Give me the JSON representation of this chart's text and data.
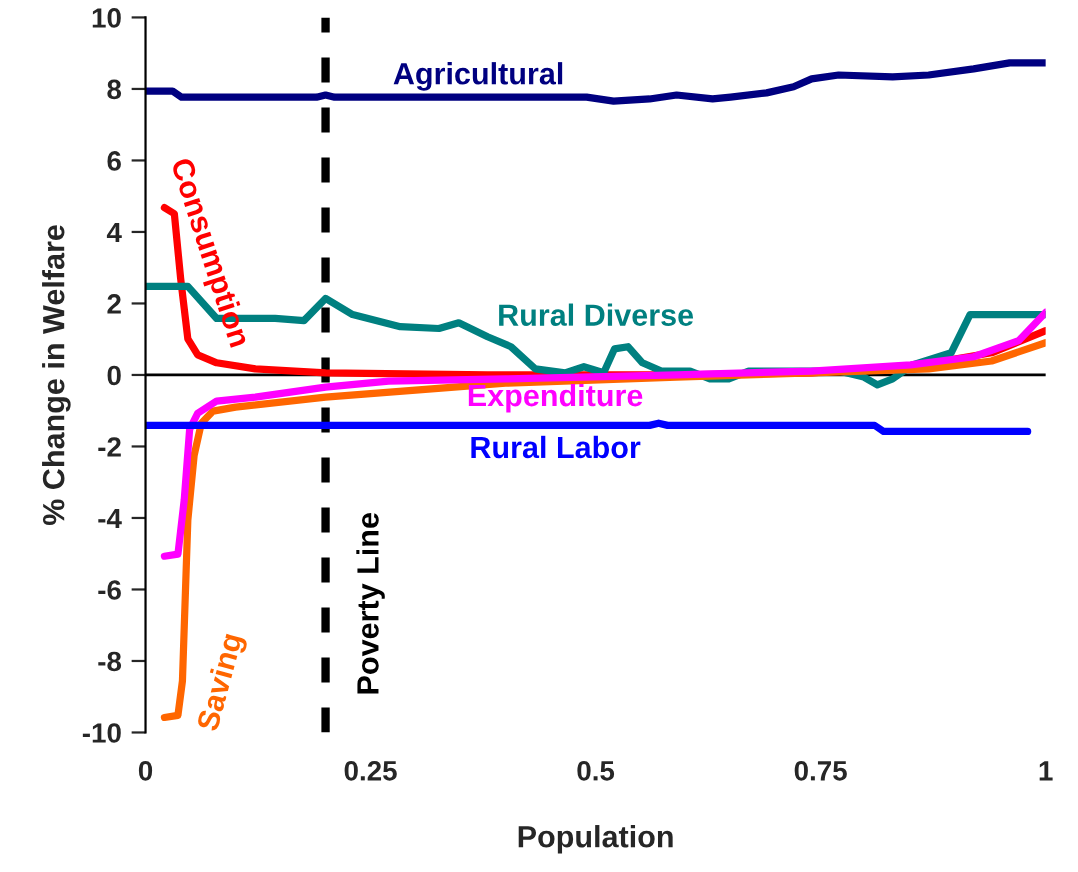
{
  "chart_data": {
    "type": "line",
    "xlabel": "Population",
    "ylabel": "% Change in Welfare",
    "xlim": [
      0,
      1
    ],
    "xticks": [
      0,
      0.25,
      0.5,
      0.75,
      1
    ],
    "ylim": [
      -10,
      10
    ],
    "yticks": [
      -10,
      -8,
      -6,
      -4,
      -2,
      0,
      2,
      4,
      6,
      8,
      10
    ],
    "grid": false,
    "legend": false,
    "line_style": "solid",
    "marker": "none",
    "ref_lines": [
      {
        "axis": "x",
        "value": 0.2,
        "label": "Poverty Line",
        "color": "#000000",
        "line_style": "dashed"
      },
      {
        "axis": "y",
        "value": 0,
        "label": null,
        "color": "#000000",
        "line_style": "solid"
      }
    ],
    "series": [
      {
        "name": "Agricultural",
        "color": "#000080",
        "x": [
          0,
          0.03,
          0.04,
          0.19,
          0.2,
          0.21,
          0.49,
          0.52,
          0.56,
          0.59,
          0.63,
          0.65,
          0.69,
          0.72,
          0.74,
          0.77,
          0.83,
          0.87,
          0.92,
          0.96,
          1.0
        ],
        "values": [
          7.94,
          7.94,
          7.77,
          7.77,
          7.83,
          7.77,
          7.77,
          7.66,
          7.72,
          7.83,
          7.72,
          7.77,
          7.89,
          8.06,
          8.28,
          8.39,
          8.34,
          8.39,
          8.56,
          8.73,
          8.73
        ]
      },
      {
        "name": "Consumption",
        "color": "#ff0000",
        "x": [
          0.021,
          0.032,
          0.039,
          0.047,
          0.058,
          0.079,
          0.122,
          0.2,
          0.38,
          0.59,
          0.74,
          0.86,
          0.94,
          1.0
        ],
        "values": [
          4.68,
          4.51,
          2.7,
          1.01,
          0.56,
          0.34,
          0.17,
          0.06,
          0,
          0,
          0.06,
          0.28,
          0.62,
          1.24
        ]
      },
      {
        "name": "Rural Diverse",
        "color": "#008080",
        "x": [
          0,
          0.047,
          0.079,
          0.144,
          0.176,
          0.2,
          0.23,
          0.283,
          0.326,
          0.348,
          0.38,
          0.406,
          0.433,
          0.466,
          0.487,
          0.509,
          0.521,
          0.536,
          0.552,
          0.573,
          0.605,
          0.627,
          0.648,
          0.67,
          0.77,
          0.798,
          0.813,
          0.83,
          0.852,
          0.895,
          0.916,
          1.0
        ],
        "values": [
          2.48,
          2.48,
          1.58,
          1.58,
          1.52,
          2.14,
          1.69,
          1.35,
          1.3,
          1.46,
          1.07,
          0.79,
          0.17,
          0.06,
          0.23,
          0.06,
          0.73,
          0.79,
          0.34,
          0.11,
          0.11,
          -0.11,
          -0.11,
          0.11,
          0.11,
          -0.06,
          -0.28,
          -0.11,
          0.28,
          0.62,
          1.69,
          1.69
        ]
      },
      {
        "name": "Saving",
        "color": "#ff6600",
        "x": [
          0.021,
          0.036,
          0.041,
          0.047,
          0.054,
          0.062,
          0.075,
          0.1,
          0.2,
          0.4,
          0.59,
          0.74,
          0.87,
          0.94,
          1.0
        ],
        "values": [
          -9.58,
          -9.52,
          -8.56,
          -4.06,
          -2.25,
          -1.35,
          -1.01,
          -0.9,
          -0.62,
          -0.23,
          -0.06,
          0.06,
          0.17,
          0.39,
          0.9
        ]
      },
      {
        "name": "Expenditure",
        "color": "#ff00ff",
        "x": [
          0.021,
          0.036,
          0.043,
          0.049,
          0.058,
          0.079,
          0.122,
          0.2,
          0.27,
          0.4,
          0.59,
          0.74,
          0.85,
          0.92,
          0.97,
          1.0
        ],
        "values": [
          -5.07,
          -5.01,
          -3.49,
          -1.52,
          -1.07,
          -0.73,
          -0.62,
          -0.34,
          -0.17,
          -0.11,
          0,
          0.11,
          0.28,
          0.51,
          0.96,
          1.75
        ]
      },
      {
        "name": "Rural Labor",
        "color": "#0000ff",
        "x": [
          0,
          0.56,
          0.57,
          0.58,
          0.81,
          0.82,
          0.98
        ],
        "values": [
          -1.41,
          -1.41,
          -1.35,
          -1.41,
          -1.41,
          -1.58,
          -1.58
        ]
      }
    ]
  }
}
